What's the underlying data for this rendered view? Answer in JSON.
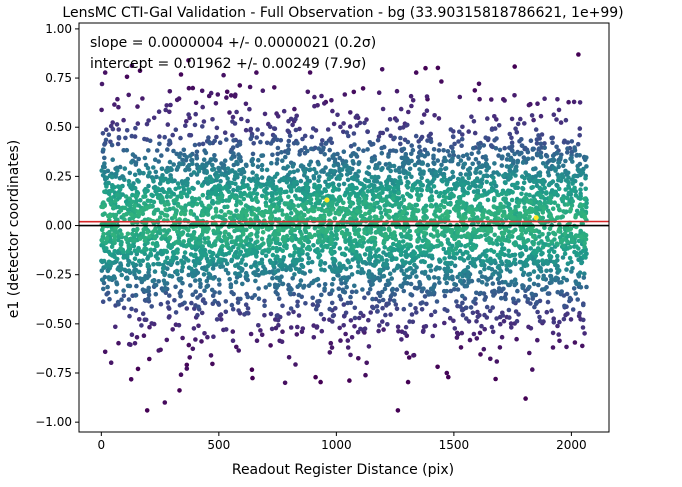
{
  "chart_data": {
    "type": "scatter",
    "title": "LensMC CTI-Gal Validation - Full Observation - bg (33.90315818786621, 1e+99)",
    "xlabel": "Readout Register Distance (pix)",
    "ylabel": "e1 (detector coordinates)",
    "xlim": [
      -95,
      2160
    ],
    "ylim": [
      -1.05,
      1.03
    ],
    "xticks": [
      0,
      500,
      1000,
      1500,
      2000
    ],
    "yticks": [
      -1.0,
      -0.75,
      -0.5,
      -0.25,
      0.0,
      0.25,
      0.5,
      0.75,
      1.0
    ],
    "xtick_labels": [
      "0",
      "500",
      "1000",
      "1500",
      "2000"
    ],
    "ytick_labels": [
      "−1.00",
      "−0.75",
      "−0.50",
      "−0.25",
      "0.00",
      "0.25",
      "0.50",
      "0.75",
      "1.00"
    ],
    "grid": false,
    "colormap": "viridis (point density)",
    "x_range_points": [
      0,
      2065
    ],
    "fit_line": {
      "slope": 4e-07,
      "intercept": 0.01962,
      "color": "#d62728"
    },
    "zero_line": {
      "y": 0.0,
      "color": "#000000"
    },
    "annotations": [
      "slope = 0.0000004 +/- 0.0000021 (0.2σ)",
      "intercept = 0.01962 +/- 0.00249 (7.9σ)"
    ],
    "notable_points": [
      {
        "x": 195,
        "y": -0.94
      },
      {
        "x": 270,
        "y": -0.9
      },
      {
        "x": 1262,
        "y": -0.94
      },
      {
        "x": 1805,
        "y": -0.88
      },
      {
        "x": 2030,
        "y": 0.87
      },
      {
        "x": 1850,
        "y": 0.04
      },
      {
        "x": 960,
        "y": 0.13
      }
    ]
  }
}
